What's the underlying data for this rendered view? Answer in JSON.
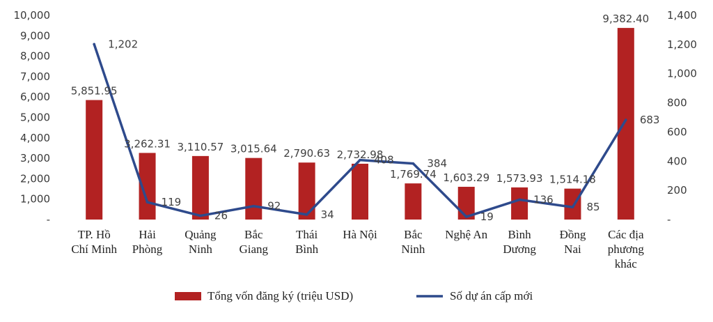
{
  "chart_data": {
    "type": "bar",
    "categories": [
      [
        "TP. Hồ",
        "Chí Minh"
      ],
      [
        "Hải",
        "Phòng"
      ],
      [
        "Quảng",
        "Ninh"
      ],
      [
        "Bắc",
        "Giang"
      ],
      [
        "Thái",
        "Bình"
      ],
      [
        "Hà Nội"
      ],
      [
        "Bắc",
        "Ninh"
      ],
      [
        "Nghệ An"
      ],
      [
        "Bình",
        "Dương"
      ],
      [
        "Đồng",
        "Nai"
      ],
      [
        "Các địa",
        "phương",
        "khác"
      ]
    ],
    "series": [
      {
        "name": "Tổng vốn đăng ký (triệu USD)",
        "type": "bar",
        "axis": "left",
        "color": "#b22222",
        "values": [
          5851.95,
          3262.31,
          3110.57,
          3015.64,
          2790.63,
          2732.98,
          1769.74,
          1603.29,
          1573.93,
          1514.18,
          9382.4
        ],
        "labels": [
          "5,851.95",
          "3,262.31",
          "3,110.57",
          "3,015.64",
          "2,790.63",
          "2,732.98",
          "1,769.74",
          "1,603.29",
          "1,573.93",
          "1,514.18",
          "9,382.40"
        ]
      },
      {
        "name": "Số dự án cấp mới",
        "type": "line",
        "axis": "right",
        "color": "#2e4a8c",
        "values": [
          1202,
          119,
          26,
          92,
          34,
          408,
          384,
          19,
          136,
          85,
          683
        ],
        "labels": [
          "1,202",
          "119",
          "26",
          "92",
          "34",
          "408",
          "384",
          "19",
          "136",
          "85",
          "683"
        ]
      }
    ],
    "y_left": {
      "range": [
        0,
        10000
      ],
      "ticks": [
        "-",
        "1,000",
        "2,000",
        "3,000",
        "4,000",
        "5,000",
        "6,000",
        "7,000",
        "8,000",
        "9,000",
        "10,000"
      ]
    },
    "y_right": {
      "range": [
        0,
        1400
      ],
      "ticks": [
        "-",
        "200",
        "400",
        "600",
        "800",
        "1,000",
        "1,200",
        "1,400"
      ]
    },
    "grid": false,
    "legend_position": "bottom"
  }
}
